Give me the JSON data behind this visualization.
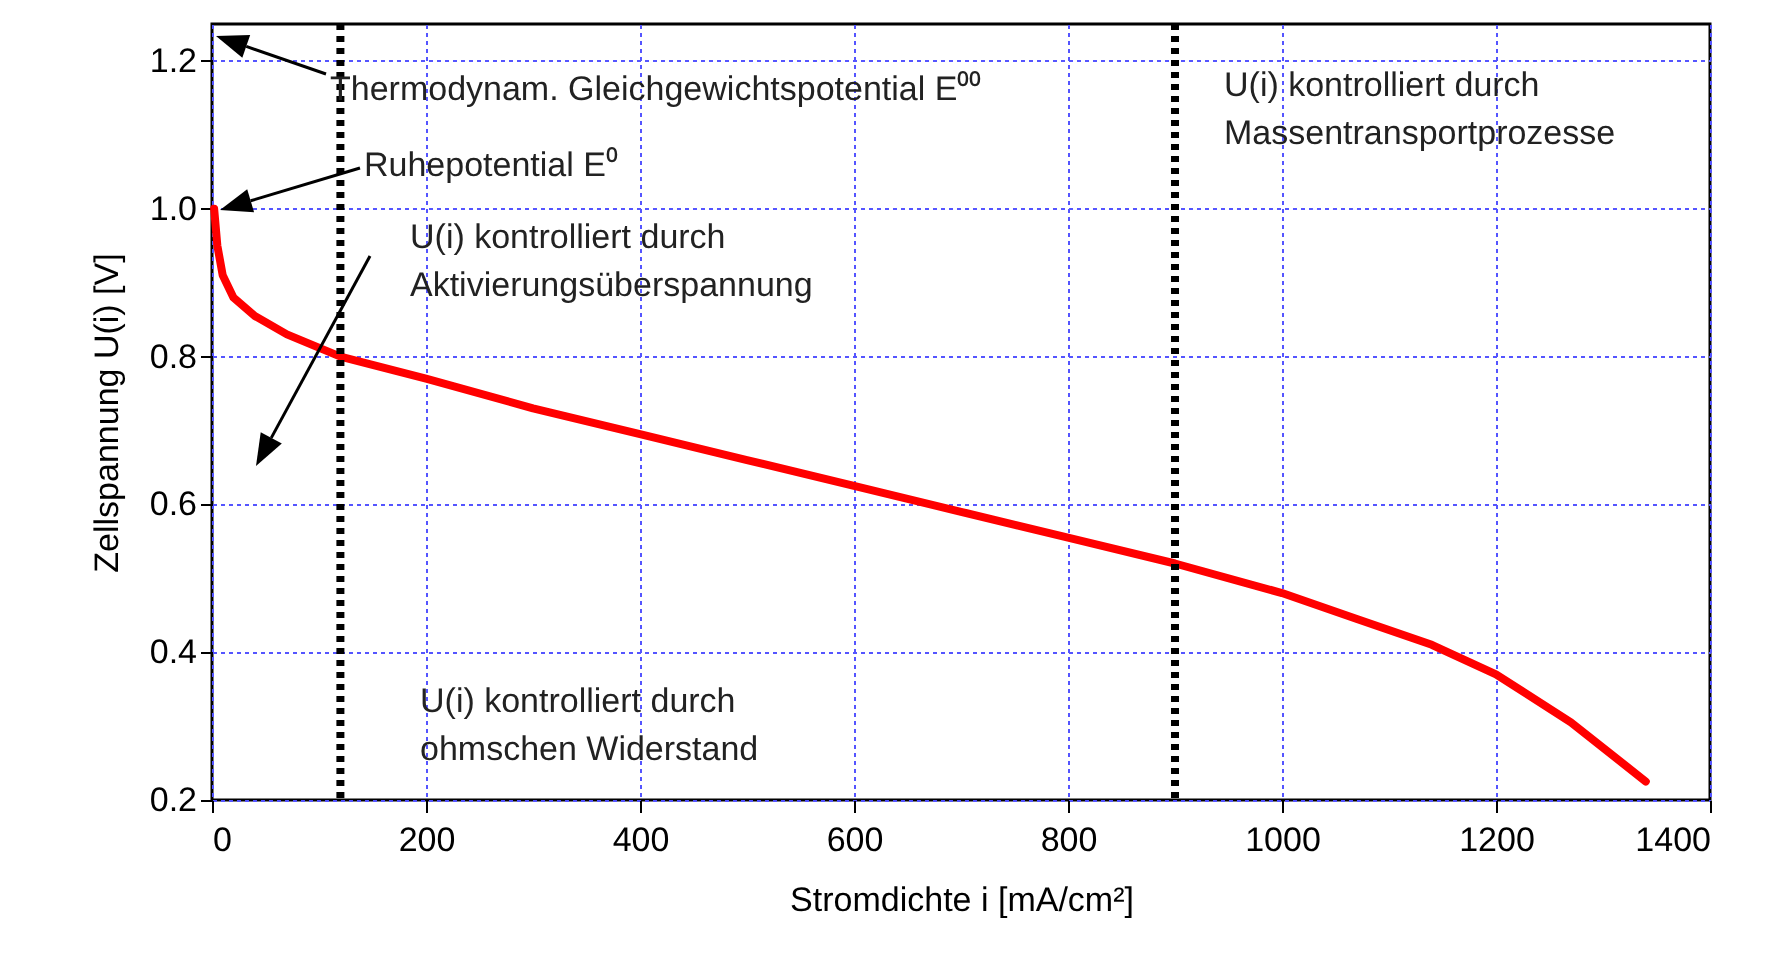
{
  "chart_data": {
    "type": "line",
    "xlabel": "Stromdichte i [mA/cm²]",
    "ylabel": "Zellspannung U(i) [V]",
    "x": [
      2,
      5,
      10,
      20,
      40,
      70,
      120,
      200,
      300,
      400,
      500,
      600,
      700,
      800,
      900,
      1000,
      1070,
      1140,
      1200,
      1270,
      1340
    ],
    "series": [
      {
        "color": "#ff0000",
        "values": [
          1.0,
          0.95,
          0.91,
          0.88,
          0.855,
          0.83,
          0.8,
          0.77,
          0.73,
          0.695,
          0.66,
          0.625,
          0.59,
          0.555,
          0.52,
          0.48,
          0.445,
          0.41,
          0.37,
          0.305,
          0.225
        ]
      }
    ],
    "xlim": [
      0,
      1400
    ],
    "xticks": [
      0,
      200,
      400,
      600,
      800,
      1000,
      1200,
      1400
    ],
    "ylim": [
      0.2,
      1.25
    ],
    "yticks": [
      0.2,
      0.4,
      0.6,
      0.8,
      {
        "value": 1.0,
        "label": "1.0"
      },
      1.2
    ],
    "grid": true,
    "marker": "none",
    "line_style": "solid",
    "ref_lines": [
      {
        "axis": "x",
        "value": 120,
        "color": "#000000",
        "line_style": "dotted"
      },
      {
        "axis": "x",
        "value": 900,
        "color": "#000000",
        "line_style": "dotted"
      }
    ],
    "annotations": [
      "Thermodynam. Gleichgewichtspotential E⁰⁰",
      "Ruhepotential E⁰",
      "U(i) kontrolliert durch\nAktivierungsüberspannung",
      "U(i) kontrolliert durch\nMassentransportprozesse",
      "U(i) kontrolliert durch\nohmschen Widerstand"
    ]
  }
}
